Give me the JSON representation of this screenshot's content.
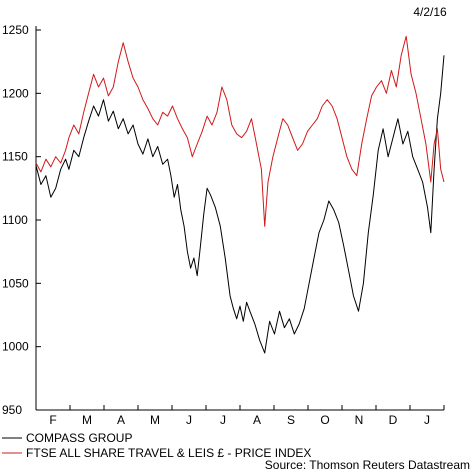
{
  "date_label": "4/2/16",
  "source": "Source: Thomson Reuters Datastream",
  "chart_data": {
    "type": "line",
    "ylim": [
      950,
      1250
    ],
    "yticks": [
      950,
      1000,
      1050,
      1100,
      1150,
      1200,
      1250
    ],
    "xlim": [
      0,
      12.4
    ],
    "xticks": [
      "F",
      "M",
      "A",
      "M",
      "J",
      "J",
      "A",
      "S",
      "O",
      "N",
      "D",
      "J"
    ],
    "grid": false,
    "legend_position": "bottom-left",
    "series": [
      {
        "name": "COMPASS GROUP",
        "color": "#000000",
        "points": [
          [
            0,
            1143
          ],
          [
            0.15,
            1128
          ],
          [
            0.3,
            1135
          ],
          [
            0.45,
            1118
          ],
          [
            0.6,
            1125
          ],
          [
            0.75,
            1140
          ],
          [
            0.9,
            1148
          ],
          [
            1.0,
            1140
          ],
          [
            1.15,
            1155
          ],
          [
            1.3,
            1150
          ],
          [
            1.45,
            1165
          ],
          [
            1.6,
            1178
          ],
          [
            1.75,
            1190
          ],
          [
            1.9,
            1182
          ],
          [
            2.05,
            1195
          ],
          [
            2.2,
            1178
          ],
          [
            2.35,
            1186
          ],
          [
            2.5,
            1172
          ],
          [
            2.65,
            1180
          ],
          [
            2.8,
            1168
          ],
          [
            2.95,
            1175
          ],
          [
            3.1,
            1160
          ],
          [
            3.25,
            1152
          ],
          [
            3.4,
            1164
          ],
          [
            3.55,
            1150
          ],
          [
            3.7,
            1158
          ],
          [
            3.85,
            1144
          ],
          [
            4.0,
            1148
          ],
          [
            4.1,
            1135
          ],
          [
            4.2,
            1118
          ],
          [
            4.3,
            1128
          ],
          [
            4.4,
            1108
          ],
          [
            4.5,
            1095
          ],
          [
            4.6,
            1075
          ],
          [
            4.7,
            1062
          ],
          [
            4.8,
            1070
          ],
          [
            4.9,
            1056
          ],
          [
            5.0,
            1080
          ],
          [
            5.1,
            1105
          ],
          [
            5.2,
            1125
          ],
          [
            5.3,
            1120
          ],
          [
            5.45,
            1110
          ],
          [
            5.6,
            1095
          ],
          [
            5.75,
            1070
          ],
          [
            5.9,
            1040
          ],
          [
            6.0,
            1030
          ],
          [
            6.1,
            1022
          ],
          [
            6.2,
            1032
          ],
          [
            6.3,
            1020
          ],
          [
            6.4,
            1035
          ],
          [
            6.5,
            1028
          ],
          [
            6.65,
            1018
          ],
          [
            6.8,
            1005
          ],
          [
            6.95,
            995
          ],
          [
            7.1,
            1020
          ],
          [
            7.25,
            1010
          ],
          [
            7.4,
            1028
          ],
          [
            7.55,
            1015
          ],
          [
            7.7,
            1022
          ],
          [
            7.85,
            1010
          ],
          [
            8.0,
            1018
          ],
          [
            8.15,
            1030
          ],
          [
            8.3,
            1050
          ],
          [
            8.45,
            1070
          ],
          [
            8.6,
            1090
          ],
          [
            8.75,
            1100
          ],
          [
            8.9,
            1115
          ],
          [
            9.05,
            1108
          ],
          [
            9.2,
            1098
          ],
          [
            9.35,
            1080
          ],
          [
            9.5,
            1060
          ],
          [
            9.65,
            1040
          ],
          [
            9.8,
            1028
          ],
          [
            9.95,
            1050
          ],
          [
            10.1,
            1090
          ],
          [
            10.25,
            1120
          ],
          [
            10.4,
            1155
          ],
          [
            10.55,
            1172
          ],
          [
            10.7,
            1150
          ],
          [
            10.85,
            1165
          ],
          [
            11.0,
            1180
          ],
          [
            11.15,
            1160
          ],
          [
            11.3,
            1170
          ],
          [
            11.45,
            1150
          ],
          [
            11.6,
            1140
          ],
          [
            11.75,
            1130
          ],
          [
            11.9,
            1110
          ],
          [
            12.0,
            1090
          ],
          [
            12.1,
            1140
          ],
          [
            12.2,
            1180
          ],
          [
            12.3,
            1200
          ],
          [
            12.4,
            1230
          ]
        ]
      },
      {
        "name": "FTSE ALL SHARE TRAVEL & LEIS £ - PRICE INDEX",
        "color": "#d11919",
        "points": [
          [
            0,
            1145
          ],
          [
            0.15,
            1138
          ],
          [
            0.3,
            1148
          ],
          [
            0.45,
            1142
          ],
          [
            0.6,
            1150
          ],
          [
            0.75,
            1145
          ],
          [
            0.9,
            1155
          ],
          [
            1.0,
            1165
          ],
          [
            1.15,
            1175
          ],
          [
            1.3,
            1168
          ],
          [
            1.45,
            1185
          ],
          [
            1.6,
            1200
          ],
          [
            1.75,
            1215
          ],
          [
            1.9,
            1205
          ],
          [
            2.05,
            1212
          ],
          [
            2.2,
            1198
          ],
          [
            2.35,
            1205
          ],
          [
            2.5,
            1225
          ],
          [
            2.65,
            1240
          ],
          [
            2.8,
            1225
          ],
          [
            2.95,
            1212
          ],
          [
            3.1,
            1205
          ],
          [
            3.25,
            1195
          ],
          [
            3.4,
            1188
          ],
          [
            3.55,
            1180
          ],
          [
            3.7,
            1175
          ],
          [
            3.85,
            1185
          ],
          [
            4.0,
            1182
          ],
          [
            4.15,
            1190
          ],
          [
            4.3,
            1180
          ],
          [
            4.45,
            1172
          ],
          [
            4.6,
            1165
          ],
          [
            4.75,
            1150
          ],
          [
            4.9,
            1160
          ],
          [
            5.05,
            1170
          ],
          [
            5.2,
            1182
          ],
          [
            5.35,
            1175
          ],
          [
            5.5,
            1185
          ],
          [
            5.65,
            1205
          ],
          [
            5.8,
            1195
          ],
          [
            5.95,
            1175
          ],
          [
            6.1,
            1168
          ],
          [
            6.25,
            1165
          ],
          [
            6.4,
            1170
          ],
          [
            6.55,
            1180
          ],
          [
            6.7,
            1160
          ],
          [
            6.85,
            1140
          ],
          [
            6.95,
            1095
          ],
          [
            7.05,
            1130
          ],
          [
            7.2,
            1150
          ],
          [
            7.35,
            1165
          ],
          [
            7.5,
            1180
          ],
          [
            7.65,
            1175
          ],
          [
            7.8,
            1165
          ],
          [
            7.95,
            1155
          ],
          [
            8.1,
            1160
          ],
          [
            8.25,
            1170
          ],
          [
            8.4,
            1175
          ],
          [
            8.55,
            1180
          ],
          [
            8.7,
            1190
          ],
          [
            8.85,
            1195
          ],
          [
            9.0,
            1190
          ],
          [
            9.15,
            1180
          ],
          [
            9.3,
            1165
          ],
          [
            9.45,
            1150
          ],
          [
            9.6,
            1140
          ],
          [
            9.75,
            1135
          ],
          [
            9.9,
            1160
          ],
          [
            10.05,
            1180
          ],
          [
            10.2,
            1198
          ],
          [
            10.35,
            1205
          ],
          [
            10.5,
            1210
          ],
          [
            10.65,
            1200
          ],
          [
            10.8,
            1218
          ],
          [
            10.95,
            1205
          ],
          [
            11.1,
            1230
          ],
          [
            11.25,
            1245
          ],
          [
            11.4,
            1215
          ],
          [
            11.55,
            1200
          ],
          [
            11.7,
            1180
          ],
          [
            11.85,
            1160
          ],
          [
            12.0,
            1130
          ],
          [
            12.1,
            1160
          ],
          [
            12.2,
            1172
          ],
          [
            12.3,
            1140
          ],
          [
            12.4,
            1130
          ]
        ]
      }
    ]
  }
}
